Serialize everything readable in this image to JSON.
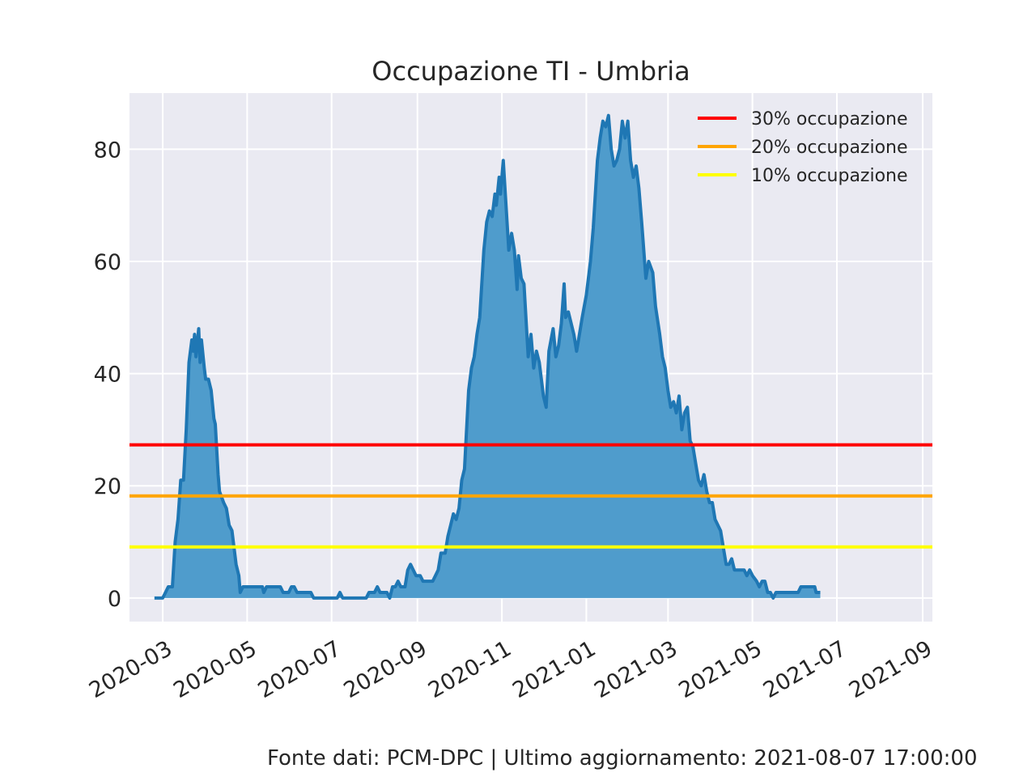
{
  "chart_data": {
    "type": "area",
    "title": "Occupazione TI - Umbria",
    "xlabel": "",
    "ylabel": "",
    "x_ticks": [
      "2020-03",
      "2020-05",
      "2020-07",
      "2020-09",
      "2020-11",
      "2021-01",
      "2021-03",
      "2021-05",
      "2021-07",
      "2021-09"
    ],
    "y_ticks": [
      0,
      20,
      40,
      60,
      80
    ],
    "xlim": [
      "2020-02-06",
      "2021-09-08"
    ],
    "ylim": [
      -4.2,
      90
    ],
    "grid": true,
    "legend_position": "top-right",
    "series": [
      {
        "color": "#1f77b4",
        "fill": "#4f9ccc",
        "points": [
          [
            "2020-02-24",
            0
          ],
          [
            "2020-03-01",
            0
          ],
          [
            "2020-03-03",
            1
          ],
          [
            "2020-03-05",
            2
          ],
          [
            "2020-03-08",
            2
          ],
          [
            "2020-03-10",
            10
          ],
          [
            "2020-03-12",
            14
          ],
          [
            "2020-03-14",
            21
          ],
          [
            "2020-03-16",
            21
          ],
          [
            "2020-03-18",
            30
          ],
          [
            "2020-03-20",
            42
          ],
          [
            "2020-03-22",
            46
          ],
          [
            "2020-03-23",
            44
          ],
          [
            "2020-03-24",
            47
          ],
          [
            "2020-03-25",
            43
          ],
          [
            "2020-03-27",
            48
          ],
          [
            "2020-03-28",
            42
          ],
          [
            "2020-03-29",
            46
          ],
          [
            "2020-03-31",
            41
          ],
          [
            "2020-04-01",
            39
          ],
          [
            "2020-04-03",
            39
          ],
          [
            "2020-04-05",
            37
          ],
          [
            "2020-04-07",
            32
          ],
          [
            "2020-04-08",
            31
          ],
          [
            "2020-04-10",
            22
          ],
          [
            "2020-04-11",
            19
          ],
          [
            "2020-04-14",
            17
          ],
          [
            "2020-04-16",
            16
          ],
          [
            "2020-04-18",
            13
          ],
          [
            "2020-04-20",
            12
          ],
          [
            "2020-04-23",
            6
          ],
          [
            "2020-04-25",
            4
          ],
          [
            "2020-04-26",
            1
          ],
          [
            "2020-04-28",
            2
          ],
          [
            "2020-05-05",
            2
          ],
          [
            "2020-05-12",
            2
          ],
          [
            "2020-05-13",
            1
          ],
          [
            "2020-05-15",
            2
          ],
          [
            "2020-05-25",
            2
          ],
          [
            "2020-05-27",
            1
          ],
          [
            "2020-05-31",
            1
          ],
          [
            "2020-06-02",
            2
          ],
          [
            "2020-06-04",
            2
          ],
          [
            "2020-06-06",
            1
          ],
          [
            "2020-06-16",
            1
          ],
          [
            "2020-06-18",
            0
          ],
          [
            "2020-07-05",
            0
          ],
          [
            "2020-07-07",
            1
          ],
          [
            "2020-07-09",
            0
          ],
          [
            "2020-07-26",
            0
          ],
          [
            "2020-07-28",
            1
          ],
          [
            "2020-08-01",
            1
          ],
          [
            "2020-08-03",
            2
          ],
          [
            "2020-08-05",
            1
          ],
          [
            "2020-08-10",
            1
          ],
          [
            "2020-08-12",
            0
          ],
          [
            "2020-08-14",
            2
          ],
          [
            "2020-08-16",
            2
          ],
          [
            "2020-08-18",
            3
          ],
          [
            "2020-08-20",
            2
          ],
          [
            "2020-08-23",
            2
          ],
          [
            "2020-08-25",
            5
          ],
          [
            "2020-08-27",
            6
          ],
          [
            "2020-08-29",
            5
          ],
          [
            "2020-08-31",
            4
          ],
          [
            "2020-09-03",
            4
          ],
          [
            "2020-09-05",
            3
          ],
          [
            "2020-09-12",
            3
          ],
          [
            "2020-09-14",
            4
          ],
          [
            "2020-09-16",
            5
          ],
          [
            "2020-09-18",
            8
          ],
          [
            "2020-09-21",
            8
          ],
          [
            "2020-09-23",
            11
          ],
          [
            "2020-09-25",
            13
          ],
          [
            "2020-09-27",
            15
          ],
          [
            "2020-09-29",
            14
          ],
          [
            "2020-10-01",
            16
          ],
          [
            "2020-10-03",
            21
          ],
          [
            "2020-10-05",
            23
          ],
          [
            "2020-10-08",
            37
          ],
          [
            "2020-10-10",
            41
          ],
          [
            "2020-10-12",
            43
          ],
          [
            "2020-10-14",
            47
          ],
          [
            "2020-10-16",
            50
          ],
          [
            "2020-10-19",
            62
          ],
          [
            "2020-10-21",
            67
          ],
          [
            "2020-10-23",
            69
          ],
          [
            "2020-10-25",
            68
          ],
          [
            "2020-10-27",
            72
          ],
          [
            "2020-10-28",
            70
          ],
          [
            "2020-10-30",
            75
          ],
          [
            "2020-10-31",
            72
          ],
          [
            "2020-11-02",
            78
          ],
          [
            "2020-11-04",
            70
          ],
          [
            "2020-11-06",
            62
          ],
          [
            "2020-11-08",
            65
          ],
          [
            "2020-11-10",
            62
          ],
          [
            "2020-11-12",
            55
          ],
          [
            "2020-11-13",
            61
          ],
          [
            "2020-11-15",
            57
          ],
          [
            "2020-11-17",
            56
          ],
          [
            "2020-11-20",
            43
          ],
          [
            "2020-11-22",
            47
          ],
          [
            "2020-11-24",
            41
          ],
          [
            "2020-11-26",
            44
          ],
          [
            "2020-11-28",
            42
          ],
          [
            "2020-12-01",
            36
          ],
          [
            "2020-12-03",
            34
          ],
          [
            "2020-12-05",
            44
          ],
          [
            "2020-12-08",
            48
          ],
          [
            "2020-12-10",
            43
          ],
          [
            "2020-12-12",
            45
          ],
          [
            "2020-12-14",
            49
          ],
          [
            "2020-12-16",
            56
          ],
          [
            "2020-12-17",
            50
          ],
          [
            "2020-12-19",
            51
          ],
          [
            "2020-12-21",
            49
          ],
          [
            "2020-12-23",
            47
          ],
          [
            "2020-12-25",
            44
          ],
          [
            "2020-12-27",
            47
          ],
          [
            "2020-12-29",
            50
          ],
          [
            "2021-01-01",
            54
          ],
          [
            "2021-01-04",
            60
          ],
          [
            "2021-01-06",
            66
          ],
          [
            "2021-01-09",
            78
          ],
          [
            "2021-01-11",
            82
          ],
          [
            "2021-01-13",
            85
          ],
          [
            "2021-01-15",
            84
          ],
          [
            "2021-01-17",
            86
          ],
          [
            "2021-01-19",
            80
          ],
          [
            "2021-01-21",
            77
          ],
          [
            "2021-01-23",
            78
          ],
          [
            "2021-01-25",
            80
          ],
          [
            "2021-01-27",
            85
          ],
          [
            "2021-01-29",
            82
          ],
          [
            "2021-01-31",
            85
          ],
          [
            "2021-02-02",
            78
          ],
          [
            "2021-02-04",
            75
          ],
          [
            "2021-02-06",
            77
          ],
          [
            "2021-02-08",
            73
          ],
          [
            "2021-02-10",
            67
          ],
          [
            "2021-02-13",
            57
          ],
          [
            "2021-02-15",
            60
          ],
          [
            "2021-02-18",
            58
          ],
          [
            "2021-02-20",
            52
          ],
          [
            "2021-02-23",
            47
          ],
          [
            "2021-02-25",
            43
          ],
          [
            "2021-02-27",
            41
          ],
          [
            "2021-03-01",
            37
          ],
          [
            "2021-03-03",
            34
          ],
          [
            "2021-03-05",
            35
          ],
          [
            "2021-03-07",
            33
          ],
          [
            "2021-03-09",
            36
          ],
          [
            "2021-03-11",
            30
          ],
          [
            "2021-03-13",
            33
          ],
          [
            "2021-03-15",
            34
          ],
          [
            "2021-03-17",
            28
          ],
          [
            "2021-03-19",
            27
          ],
          [
            "2021-03-21",
            24
          ],
          [
            "2021-03-23",
            21
          ],
          [
            "2021-03-25",
            20
          ],
          [
            "2021-03-27",
            22
          ],
          [
            "2021-03-29",
            19
          ],
          [
            "2021-03-31",
            17
          ],
          [
            "2021-04-02",
            17
          ],
          [
            "2021-04-04",
            14
          ],
          [
            "2021-04-06",
            13
          ],
          [
            "2021-04-08",
            12
          ],
          [
            "2021-04-10",
            9
          ],
          [
            "2021-04-12",
            6
          ],
          [
            "2021-04-14",
            6
          ],
          [
            "2021-04-16",
            7
          ],
          [
            "2021-04-18",
            5
          ],
          [
            "2021-04-25",
            5
          ],
          [
            "2021-04-27",
            4
          ],
          [
            "2021-04-29",
            5
          ],
          [
            "2021-05-01",
            4
          ],
          [
            "2021-05-04",
            3
          ],
          [
            "2021-05-06",
            2
          ],
          [
            "2021-05-08",
            3
          ],
          [
            "2021-05-10",
            3
          ],
          [
            "2021-05-12",
            1
          ],
          [
            "2021-05-14",
            1
          ],
          [
            "2021-05-16",
            0
          ],
          [
            "2021-05-18",
            1
          ],
          [
            "2021-06-03",
            1
          ],
          [
            "2021-06-05",
            2
          ],
          [
            "2021-06-15",
            2
          ],
          [
            "2021-06-16",
            1
          ],
          [
            "2021-06-19",
            1
          ]
        ]
      }
    ],
    "thresholds": [
      {
        "label": "30% occupazione",
        "value": 27.3,
        "color": "#ff0000"
      },
      {
        "label": "20% occupazione",
        "value": 18.2,
        "color": "#ffa500"
      },
      {
        "label": "10% occupazione",
        "value": 9.1,
        "color": "#ffff00"
      }
    ]
  },
  "footer": {
    "text": "Fonte dati: PCM-DPC | Ultimo aggiornamento: 2021-08-07 17:00:00"
  }
}
